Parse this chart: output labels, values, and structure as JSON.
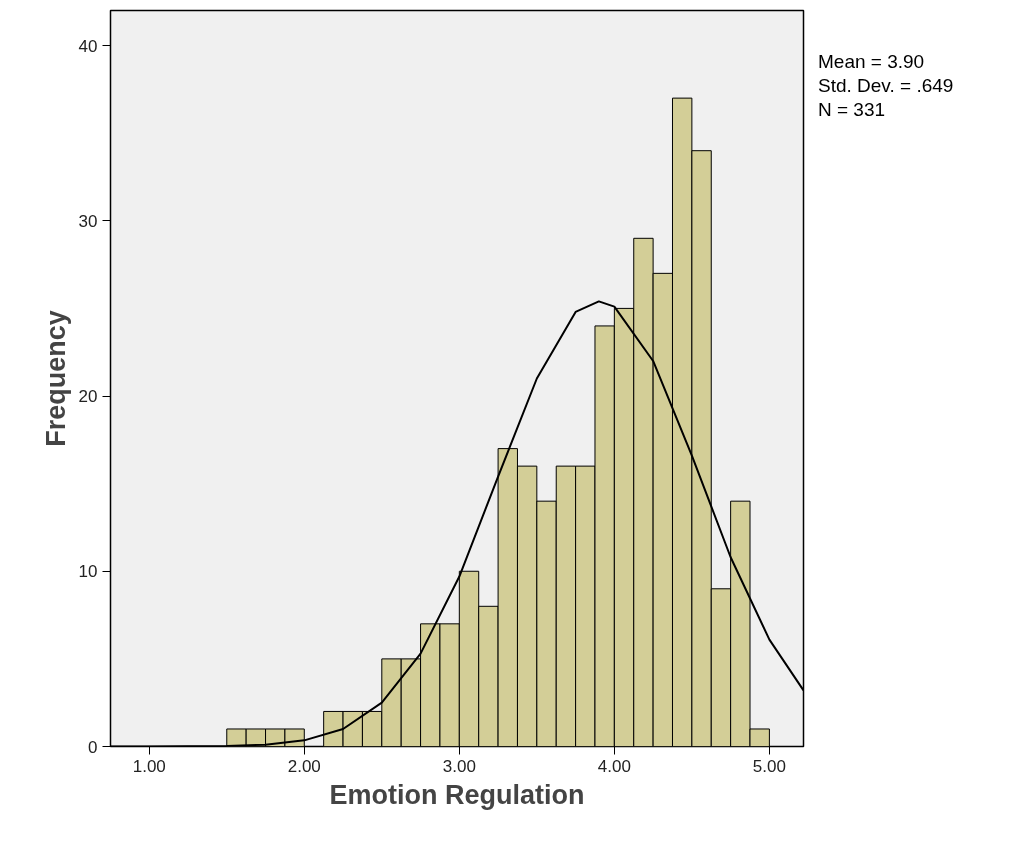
{
  "chart_data": {
    "type": "histogram",
    "xlabel": "Emotion Regulation",
    "ylabel": "Frequency",
    "annotations": [
      "Mean = 3.90",
      "Std. Dev. = .649",
      "N = 331"
    ],
    "xlim": [
      0.75,
      5.22
    ],
    "ylim": [
      0,
      42
    ],
    "xticks": [
      {
        "value": 1,
        "label": "1.00"
      },
      {
        "value": 2,
        "label": "2.00"
      },
      {
        "value": 3,
        "label": "3.00"
      },
      {
        "value": 4,
        "label": "4.00"
      },
      {
        "value": 5,
        "label": "5.00"
      }
    ],
    "yticks": [
      0,
      10,
      20,
      30,
      40
    ],
    "grid": false,
    "series": [
      {
        "color": "#d3ce97",
        "bins": [
          1.5,
          1.625,
          1.75,
          1.875,
          2.0,
          2.125,
          2.25,
          2.375,
          2.5,
          2.625,
          2.75,
          2.875,
          3.0,
          3.125,
          3.25,
          3.375,
          3.5,
          3.625,
          3.75,
          3.875,
          4.0,
          4.125,
          4.25,
          4.375,
          4.5,
          4.625,
          4.75,
          4.875,
          5.0
        ],
        "values": [
          1,
          1,
          1,
          1,
          0,
          2,
          2,
          2,
          5,
          5,
          7,
          7,
          10,
          8,
          17,
          16,
          14,
          16,
          16,
          24,
          25,
          29,
          27,
          37,
          34,
          9,
          14,
          1
        ]
      },
      {
        "type": "line",
        "color": "#000000",
        "x": [
          0.75,
          1.0,
          1.5,
          1.75,
          2.0,
          2.25,
          2.5,
          2.75,
          3.0,
          3.25,
          3.5,
          3.75,
          3.9,
          4.0,
          4.25,
          4.5,
          4.75,
          5.0,
          5.22
        ],
        "values": [
          0,
          0,
          0.03,
          0.1,
          0.35,
          1.0,
          2.5,
          5.3,
          9.7,
          15.4,
          21.0,
          24.8,
          25.4,
          25.1,
          22.0,
          16.6,
          10.8,
          6.1,
          3.2
        ]
      }
    ]
  }
}
